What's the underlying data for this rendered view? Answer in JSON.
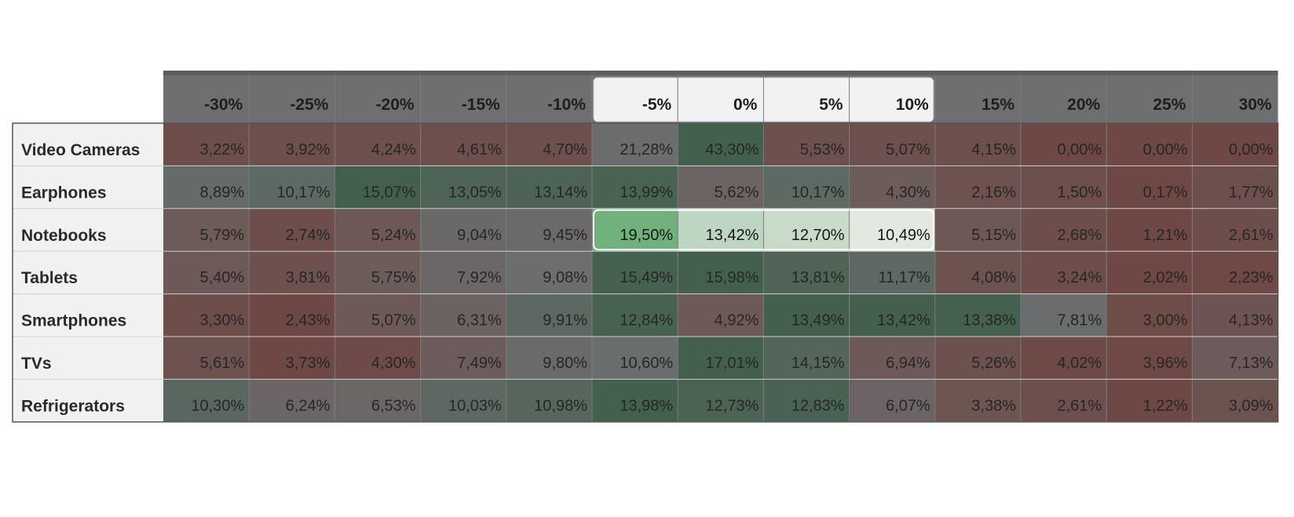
{
  "chart_data": {
    "type": "heatmap",
    "x": [
      "-30%",
      "-25%",
      "-20%",
      "-15%",
      "-10%",
      "-5%",
      "0%",
      "5%",
      "10%",
      "15%",
      "20%",
      "25%",
      "30%"
    ],
    "y": [
      "Video Cameras",
      "Earphones",
      "Notebooks",
      "Tablets",
      "Smartphones",
      "TVs",
      "Refrigerators"
    ],
    "values": [
      [
        3.22,
        3.92,
        4.24,
        4.61,
        4.7,
        21.28,
        43.3,
        5.53,
        5.07,
        4.15,
        0.0,
        0.0,
        0.0
      ],
      [
        8.89,
        10.17,
        15.07,
        13.05,
        13.14,
        13.99,
        5.62,
        10.17,
        4.3,
        2.16,
        1.5,
        0.17,
        1.77
      ],
      [
        5.79,
        2.74,
        5.24,
        9.04,
        9.45,
        19.5,
        13.42,
        12.7,
        10.49,
        5.15,
        2.68,
        1.21,
        2.61
      ],
      [
        5.4,
        3.81,
        5.75,
        7.92,
        9.08,
        15.49,
        15.98,
        13.81,
        11.17,
        4.08,
        3.24,
        2.02,
        2.23
      ],
      [
        3.3,
        2.43,
        5.07,
        6.31,
        9.91,
        12.84,
        4.92,
        13.49,
        13.42,
        13.38,
        7.81,
        3.0,
        4.13
      ],
      [
        5.61,
        3.73,
        4.3,
        7.49,
        9.8,
        10.6,
        17.01,
        14.15,
        6.94,
        5.26,
        4.02,
        3.96,
        7.13
      ],
      [
        10.3,
        6.24,
        6.53,
        10.03,
        10.98,
        13.98,
        12.73,
        12.83,
        6.07,
        3.38,
        2.61,
        1.22,
        3.09
      ]
    ],
    "labels": [
      [
        "3,22%",
        "3,92%",
        "4,24%",
        "4,61%",
        "4,70%",
        "21,28%",
        "43,30%",
        "5,53%",
        "5,07%",
        "4,15%",
        "0,00%",
        "0,00%",
        "0,00%"
      ],
      [
        "8,89%",
        "10,17%",
        "15,07%",
        "13,05%",
        "13,14%",
        "13,99%",
        "5,62%",
        "10,17%",
        "4,30%",
        "2,16%",
        "1,50%",
        "0,17%",
        "1,77%"
      ],
      [
        "5,79%",
        "2,74%",
        "5,24%",
        "9,04%",
        "9,45%",
        "19,50%",
        "13,42%",
        "12,70%",
        "10,49%",
        "5,15%",
        "2,68%",
        "1,21%",
        "2,61%"
      ],
      [
        "5,40%",
        "3,81%",
        "5,75%",
        "7,92%",
        "9,08%",
        "15,49%",
        "15,98%",
        "13,81%",
        "11,17%",
        "4,08%",
        "3,24%",
        "2,02%",
        "2,23%"
      ],
      [
        "3,30%",
        "2,43%",
        "5,07%",
        "6,31%",
        "9,91%",
        "12,84%",
        "4,92%",
        "13,49%",
        "13,42%",
        "13,38%",
        "7,81%",
        "3,00%",
        "4,13%"
      ],
      [
        "5,61%",
        "3,73%",
        "4,30%",
        "7,49%",
        "9,80%",
        "10,60%",
        "17,01%",
        "14,15%",
        "6,94%",
        "5,26%",
        "4,02%",
        "3,96%",
        "7,13%"
      ],
      [
        "10,30%",
        "6,24%",
        "6,53%",
        "10,03%",
        "10,98%",
        "13,98%",
        "12,73%",
        "12,83%",
        "6,07%",
        "3,38%",
        "2,61%",
        "1,22%",
        "3,09%"
      ]
    ],
    "highlight": {
      "row": "Notebooks",
      "columns": [
        "-5%",
        "0%",
        "5%",
        "10%"
      ]
    },
    "colors": {
      "high": "#43604d",
      "mid": "#6b6d6e",
      "low": "#6e4844",
      "highlight_strong": "#70b17e",
      "highlight_weak": "#f7f2f2"
    },
    "title": "",
    "xlabel": "",
    "ylabel": "",
    "legend": "none",
    "grid": true
  }
}
